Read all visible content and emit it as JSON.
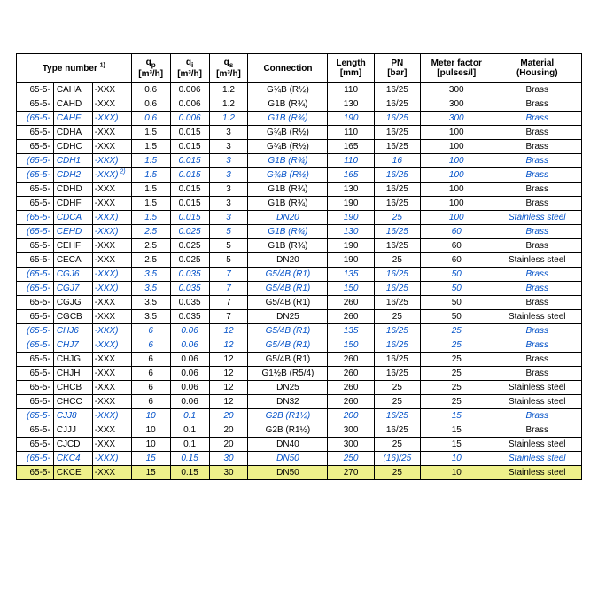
{
  "headers": {
    "type_number": "Type number",
    "type_number_sup": "1)",
    "qp_label": "q",
    "qp_sub": "p",
    "qi_label": "q",
    "qi_sub": "i",
    "qs_label": "q",
    "qs_sub": "s",
    "flow_unit": "[m³/h]",
    "connection": "Connection",
    "length": "Length",
    "length_unit": "[mm]",
    "pn": "PN",
    "pn_unit": "[bar]",
    "meter_factor": "Meter factor",
    "meter_factor_unit": "[pulses/l]",
    "material": "Material",
    "material_sub": "(Housing)"
  },
  "rows": [
    {
      "a": "65-5-",
      "b": "CAHA",
      "c": "-XXX",
      "qp": "0.6",
      "qi": "0.006",
      "qs": "1.2",
      "conn": "G¾B (R½)",
      "len": "110",
      "pn": "16/25",
      "mf": "300",
      "mat": "Brass",
      "cls": ""
    },
    {
      "a": "65-5-",
      "b": "CAHD",
      "c": "-XXX",
      "qp": "0.6",
      "qi": "0.006",
      "qs": "1.2",
      "conn": "G1B (R¾)",
      "len": "130",
      "pn": "16/25",
      "mf": "300",
      "mat": "Brass",
      "cls": ""
    },
    {
      "a": "(65-5-",
      "b": "CAHF",
      "c": "-XXX)",
      "qp": "0.6",
      "qi": "0.006",
      "qs": "1.2",
      "conn": "G1B (R¾)",
      "len": "190",
      "pn": "16/25",
      "mf": "300",
      "mat": "Brass",
      "cls": "variant"
    },
    {
      "a": "65-5-",
      "b": "CDHA",
      "c": "-XXX",
      "qp": "1.5",
      "qi": "0.015",
      "qs": "3",
      "conn": "G¾B (R½)",
      "len": "110",
      "pn": "16/25",
      "mf": "100",
      "mat": "Brass",
      "cls": ""
    },
    {
      "a": "65-5-",
      "b": "CDHC",
      "c": "-XXX",
      "qp": "1.5",
      "qi": "0.015",
      "qs": "3",
      "conn": "G¾B (R½)",
      "len": "165",
      "pn": "16/25",
      "mf": "100",
      "mat": "Brass",
      "cls": ""
    },
    {
      "a": "(65-5-",
      "b": "CDH1",
      "c": "-XXX)",
      "qp": "1.5",
      "qi": "0.015",
      "qs": "3",
      "conn": "G1B (R¾)",
      "len": "110",
      "pn": "16",
      "mf": "100",
      "mat": "Brass",
      "cls": "variant"
    },
    {
      "a": "(65-5-",
      "b": "CDH2",
      "c": "-XXX)",
      "sup": "2)",
      "qp": "1.5",
      "qi": "0.015",
      "qs": "3",
      "conn": "G¾B (R½)",
      "len": "165",
      "pn": "16/25",
      "mf": "100",
      "mat": "Brass",
      "cls": "variant"
    },
    {
      "a": "65-5-",
      "b": "CDHD",
      "c": "-XXX",
      "qp": "1.5",
      "qi": "0.015",
      "qs": "3",
      "conn": "G1B (R¾)",
      "len": "130",
      "pn": "16/25",
      "mf": "100",
      "mat": "Brass",
      "cls": ""
    },
    {
      "a": "65-5-",
      "b": "CDHF",
      "c": "-XXX",
      "qp": "1.5",
      "qi": "0.015",
      "qs": "3",
      "conn": "G1B (R¾)",
      "len": "190",
      "pn": "16/25",
      "mf": "100",
      "mat": "Brass",
      "cls": ""
    },
    {
      "a": "(65-5-",
      "b": "CDCA",
      "c": "-XXX)",
      "qp": "1.5",
      "qi": "0.015",
      "qs": "3",
      "conn": "DN20",
      "len": "190",
      "pn": "25",
      "mf": "100",
      "mat": "Stainless steel",
      "cls": "variant"
    },
    {
      "a": "(65-5-",
      "b": "CEHD",
      "c": "-XXX)",
      "qp": "2.5",
      "qi": "0.025",
      "qs": "5",
      "conn": "G1B (R¾)",
      "len": "130",
      "pn": "16/25",
      "mf": "60",
      "mat": "Brass",
      "cls": "variant"
    },
    {
      "a": "65-5-",
      "b": "CEHF",
      "c": "-XXX",
      "qp": "2.5",
      "qi": "0.025",
      "qs": "5",
      "conn": "G1B (R¾)",
      "len": "190",
      "pn": "16/25",
      "mf": "60",
      "mat": "Brass",
      "cls": ""
    },
    {
      "a": "65-5-",
      "b": "CECA",
      "c": "-XXX",
      "qp": "2.5",
      "qi": "0.025",
      "qs": "5",
      "conn": "DN20",
      "len": "190",
      "pn": "25",
      "mf": "60",
      "mat": "Stainless steel",
      "cls": ""
    },
    {
      "a": "(65-5-",
      "b": "CGJ6",
      "c": "-XXX)",
      "qp": "3.5",
      "qi": "0.035",
      "qs": "7",
      "conn": "G5/4B (R1)",
      "len": "135",
      "pn": "16/25",
      "mf": "50",
      "mat": "Brass",
      "cls": "variant"
    },
    {
      "a": "(65-5-",
      "b": "CGJ7",
      "c": "-XXX)",
      "qp": "3.5",
      "qi": "0.035",
      "qs": "7",
      "conn": "G5/4B (R1)",
      "len": "150",
      "pn": "16/25",
      "mf": "50",
      "mat": "Brass",
      "cls": "variant"
    },
    {
      "a": "65-5-",
      "b": "CGJG",
      "c": "-XXX",
      "qp": "3.5",
      "qi": "0.035",
      "qs": "7",
      "conn": "G5/4B (R1)",
      "len": "260",
      "pn": "16/25",
      "mf": "50",
      "mat": "Brass",
      "cls": ""
    },
    {
      "a": "65-5-",
      "b": "CGCB",
      "c": "-XXX",
      "qp": "3.5",
      "qi": "0.035",
      "qs": "7",
      "conn": "DN25",
      "len": "260",
      "pn": "25",
      "mf": "50",
      "mat": "Stainless steel",
      "cls": ""
    },
    {
      "a": "(65-5-",
      "b": "CHJ6",
      "c": "-XXX)",
      "qp": "6",
      "qi": "0.06",
      "qs": "12",
      "conn": "G5/4B (R1)",
      "len": "135",
      "pn": "16/25",
      "mf": "25",
      "mat": "Brass",
      "cls": "variant"
    },
    {
      "a": "(65-5-",
      "b": "CHJ7",
      "c": "-XXX)",
      "qp": "6",
      "qi": "0.06",
      "qs": "12",
      "conn": "G5/4B (R1)",
      "len": "150",
      "pn": "16/25",
      "mf": "25",
      "mat": "Brass",
      "cls": "variant"
    },
    {
      "a": "65-5-",
      "b": "CHJG",
      "c": "-XXX",
      "qp": "6",
      "qi": "0.06",
      "qs": "12",
      "conn": "G5/4B (R1)",
      "len": "260",
      "pn": "16/25",
      "mf": "25",
      "mat": "Brass",
      "cls": ""
    },
    {
      "a": "65-5-",
      "b": "CHJH",
      "c": "-XXX",
      "qp": "6",
      "qi": "0.06",
      "qs": "12",
      "conn": "G1½B (R5/4)",
      "len": "260",
      "pn": "16/25",
      "mf": "25",
      "mat": "Brass",
      "cls": ""
    },
    {
      "a": "65-5-",
      "b": "CHCB",
      "c": "-XXX",
      "qp": "6",
      "qi": "0.06",
      "qs": "12",
      "conn": "DN25",
      "len": "260",
      "pn": "25",
      "mf": "25",
      "mat": "Stainless steel",
      "cls": ""
    },
    {
      "a": "65-5-",
      "b": "CHCC",
      "c": "-XXX",
      "qp": "6",
      "qi": "0.06",
      "qs": "12",
      "conn": "DN32",
      "len": "260",
      "pn": "25",
      "mf": "25",
      "mat": "Stainless steel",
      "cls": ""
    },
    {
      "a": "(65-5-",
      "b": "CJJ8",
      "c": "-XXX)",
      "qp": "10",
      "qi": "0.1",
      "qs": "20",
      "conn": "G2B (R1½)",
      "len": "200",
      "pn": "16/25",
      "mf": "15",
      "mat": "Brass",
      "cls": "variant"
    },
    {
      "a": "65-5-",
      "b": "CJJJ",
      "c": "-XXX",
      "qp": "10",
      "qi": "0.1",
      "qs": "20",
      "conn": "G2B (R1½)",
      "len": "300",
      "pn": "16/25",
      "mf": "15",
      "mat": "Brass",
      "cls": ""
    },
    {
      "a": "65-5-",
      "b": "CJCD",
      "c": "-XXX",
      "qp": "10",
      "qi": "0.1",
      "qs": "20",
      "conn": "DN40",
      "len": "300",
      "pn": "25",
      "mf": "15",
      "mat": "Stainless steel",
      "cls": ""
    },
    {
      "a": "(65-5-",
      "b": "CKC4",
      "c": "-XXX)",
      "qp": "15",
      "qi": "0.15",
      "qs": "30",
      "conn": "DN50",
      "len": "250",
      "pn": "(16)/25",
      "mf": "10",
      "mat": "Stainless steel",
      "cls": "variant"
    },
    {
      "a": "65-5-",
      "b": "CKCE",
      "c": "-XXX",
      "qp": "15",
      "qi": "0.15",
      "qs": "30",
      "conn": "DN50",
      "len": "270",
      "pn": "25",
      "mf": "10",
      "mat": "Stainless steel",
      "cls": "hl"
    }
  ]
}
